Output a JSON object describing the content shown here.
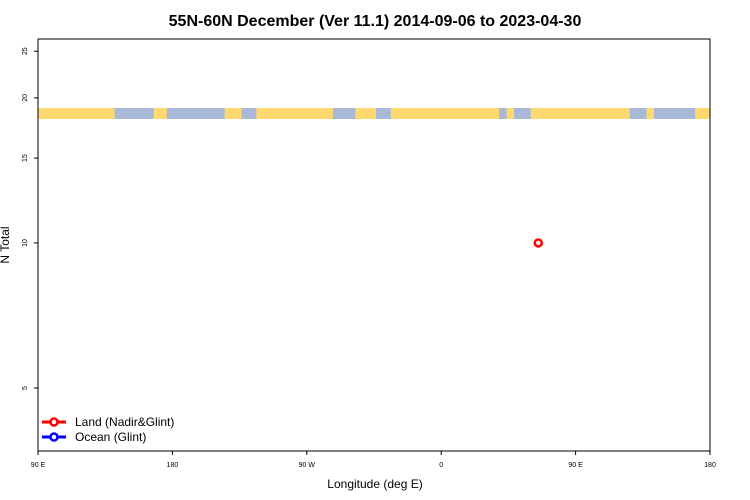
{
  "chart_data": {
    "type": "scatter",
    "title": "55N-60N December (Ver 11.1)   2014-09-06 to 2023-04-30",
    "xlabel": "Longitude (deg E)",
    "ylabel": "N Total",
    "y_scale": "log",
    "xlim": [
      90,
      450
    ],
    "ylim": [
      3.7,
      26.5
    ],
    "x_ticks": [
      {
        "value": 90,
        "label": "90 E"
      },
      {
        "value": 180,
        "label": "180"
      },
      {
        "value": 270,
        "label": "90 W"
      },
      {
        "value": 360,
        "label": "0"
      },
      {
        "value": 450,
        "label": "90 E"
      },
      {
        "value": 540,
        "label": "180"
      }
    ],
    "y_ticks": [
      {
        "value": 5,
        "label": "5"
      },
      {
        "value": 10,
        "label": "10"
      },
      {
        "value": 15,
        "label": "15"
      },
      {
        "value": 20,
        "label": "20"
      },
      {
        "value": 25,
        "label": "25"
      }
    ],
    "series": [
      {
        "name": "Land (Nadir&Glint)",
        "color": "#ff0000",
        "points": [
          {
            "x": 358,
            "y": 10
          }
        ]
      },
      {
        "name": "Ocean (Glint)",
        "color": "#0000ff",
        "points": []
      }
    ],
    "legend_position": "bottom-left",
    "land_color": "#ffd970",
    "ocean_color": "#a7b9d6",
    "land_segments_lon": [
      [
        -6,
        47
      ],
      [
        56,
        60
      ],
      [
        82,
        131
      ],
      [
        152,
        159
      ],
      [
        190,
        199
      ],
      [
        207,
        248
      ],
      [
        260,
        271
      ],
      [
        279,
        337
      ],
      [
        341,
        345
      ]
    ]
  }
}
